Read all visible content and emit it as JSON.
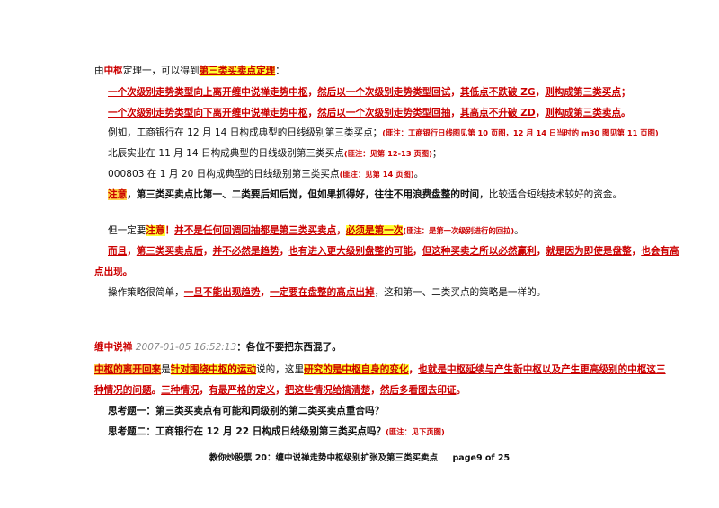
{
  "colors": {
    "red": "#cc0000",
    "highlight": "#ffff33",
    "highlight_orange": "#ffd24a",
    "timestamp": "#888888"
  },
  "p1": {
    "a": "由",
    "b": "中枢",
    "c": "定理一，可以得到",
    "d": "第三类买卖点定理",
    "e": "："
  },
  "p2": {
    "a": "一个次级别走势类型向上离开缠中说禅走势中枢",
    "b": "，",
    "c": "然后以一个次级别走势类型回试",
    "d": "，",
    "e": "其低点不跌破 ZG",
    "f": "，",
    "g": "则构成第三类买点",
    "h": "；"
  },
  "p3": {
    "a": "一个次级别走势类型向下离开缠中说禅走势中枢",
    "b": "，",
    "c": "然后以一个次级别走势类型回抽",
    "d": "，",
    "e": "其高点不升破 ZD",
    "f": "，",
    "g": "则构成第三类卖点",
    "h": "。"
  },
  "p4": {
    "a": "例如，工商银行在 12 月 14 日构成典型的日线级别第三类买点；",
    "b": "(匪注：工商银行日线图见第 10 页图，12 月 14 日当时的 m30 图见第 11 页图)"
  },
  "p5": {
    "a": "北辰实业在 11 月 14 日构成典型的日线级别第三类买点",
    "b": "(匪注：见第 12-13 页图)",
    "c": "；"
  },
  "p6": {
    "a": "000803 在 1 月 20 日构成典型的日线级别第三类买点",
    "b": "(匪注：见第 14 页图)",
    "c": "。"
  },
  "p7": {
    "a": "注意",
    "b": "，第三类买卖点比第一、二类要后知后觉，但如果抓得好，往往不用浪费盘整的时间",
    "c": "，比较适合短线技术较好的资金。"
  },
  "p8": {
    "a": "但一定要",
    "b": "注意",
    "c": "！",
    "d": "并不是任何回调回抽都是第三类买卖点",
    "e": "，",
    "f": "必须是第一次",
    "g": "(匪注：是第一次级别进行的回拉)",
    "h": "。"
  },
  "p9": {
    "a": "而且",
    "b": "，",
    "c": "第三类买卖点后",
    "d": "，",
    "e": "并不必然是趋势",
    "f": "，",
    "g": "也有进入更大级别盘整的可能",
    "h": "，",
    "i": "但这种买卖之所以必然赢利",
    "j": "，",
    "k": "就是因为即使是盘整",
    "l": "，",
    "m": "也会有高"
  },
  "p10": {
    "a": "点出现",
    "b": "。"
  },
  "p11": {
    "a": "操作策略很简单，",
    "b": "一旦不能出现趋势",
    "c": "，",
    "d": "一定要在盘整的高点出掉",
    "e": "，这和第一、二类买点的策略是一样的。"
  },
  "p12": {
    "a": "缠中说禅",
    "b": " 2007-01-05 16:52:13",
    "c": "：各位不要把东西混了。"
  },
  "p13": {
    "a": "中枢的离开回来",
    "b": "是",
    "c": "针对围绕中枢的运动",
    "d": "说的，这里",
    "e": "研究的是中枢自身的变化",
    "f": "，",
    "g": "也就是中枢延续与产生新中枢以及产生更高级别的中枢这三"
  },
  "p14": {
    "a": "种情况的问题",
    "b": "。",
    "c": "三种情况",
    "d": "，",
    "e": "有最严格的定义",
    "f": "，",
    "g": "把这些情况给搞清楚",
    "h": "，",
    "i": "然后多看图去印证",
    "j": "。"
  },
  "p15": "思考题一：第三类买卖点有可能和同级别的第二类买卖点重合吗？",
  "p16": {
    "a": "思考题二：工商银行在 12 月 22 日构成日线级别第三类买点吗？",
    "b": "(匪注：见下页图)"
  },
  "footer": {
    "title": "教你炒股票 20：缠中说禅走势中枢级别扩张及第三类买卖点",
    "page": "page9 of 25"
  }
}
